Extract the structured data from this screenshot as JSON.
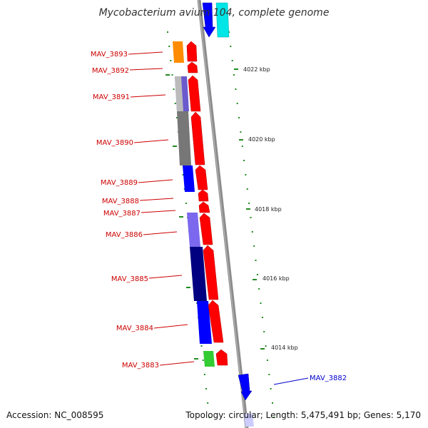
{
  "title": "Mycobacterium avium 104, complete genome",
  "footer": {
    "accession": "Accession: NC_008595",
    "summary": "Topology: circular; Length: 5,475,491 bp; Genes: 5,170"
  },
  "kbp_ticks": [
    "4022 kbp",
    "4020 kbp",
    "4018 kbp",
    "4016 kbp",
    "4014 kbp"
  ],
  "colors": {
    "backbone": "#8c8c8c",
    "forward_gene": "#ff0000",
    "reverse_gene": "#0000ff",
    "forward_label": "#cc0000",
    "reverse_label": "#0000cc",
    "tick": "#228b22",
    "cog_orange": "#ff8c00",
    "cog_slate": "#6a5acd",
    "cog_gray": "#777777",
    "cog_blue": "#0000ff",
    "cog_navy": "#000080",
    "cog_green": "#33cc33",
    "cog_cyan": "#00e5e5"
  },
  "genes": [
    {
      "label": "MAV_3893",
      "strand": "forward"
    },
    {
      "label": "MAV_3892",
      "strand": "forward"
    },
    {
      "label": "MAV_3891",
      "strand": "forward"
    },
    {
      "label": "MAV_3890",
      "strand": "forward"
    },
    {
      "label": "MAV_3889",
      "strand": "forward"
    },
    {
      "label": "MAV_3888",
      "strand": "forward"
    },
    {
      "label": "MAV_3887",
      "strand": "forward"
    },
    {
      "label": "MAV_3886",
      "strand": "forward"
    },
    {
      "label": "MAV_3885",
      "strand": "forward"
    },
    {
      "label": "MAV_3884",
      "strand": "forward"
    },
    {
      "label": "MAV_3883",
      "strand": "forward"
    },
    {
      "label": "MAV_3882",
      "strand": "reverse"
    }
  ]
}
